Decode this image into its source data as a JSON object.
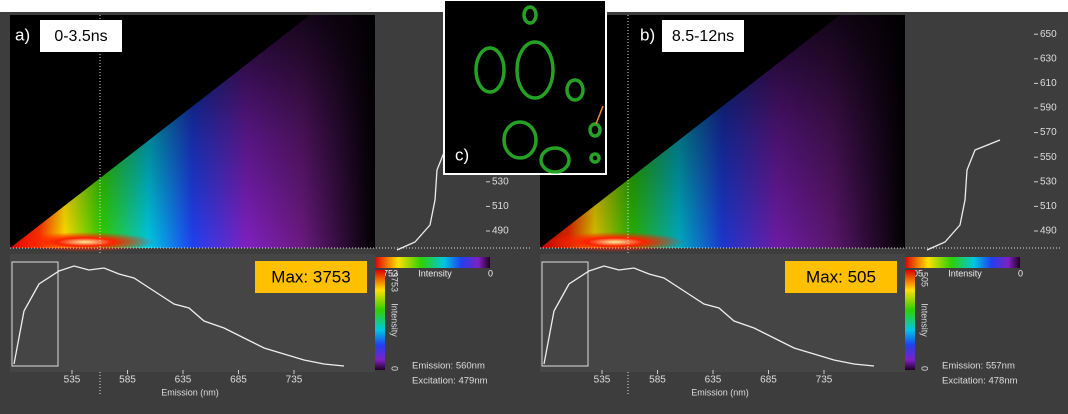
{
  "panels": [
    {
      "label": "a)",
      "window": "0-3.5ns",
      "max": "Max: 3753",
      "colorbar": {
        "max": "3753",
        "title": "Intensity",
        "min": "0"
      },
      "emission_ticks": [
        "535",
        "585",
        "635",
        "685",
        "735"
      ],
      "emission_axis": "Emission (nm)",
      "excitation_ticks": [
        "490",
        "510",
        "530"
      ],
      "readout": [
        "Emission: 560nm",
        "Excitation: 479nm"
      ]
    },
    {
      "label": "b)",
      "window": "8.5-12ns",
      "max": "Max: 505",
      "colorbar": {
        "max": "505",
        "title": "Intensity",
        "min": "0"
      },
      "emission_ticks": [
        "535",
        "585",
        "635",
        "685",
        "735"
      ],
      "emission_axis": "Emission (nm)",
      "excitation_ticks": [
        "490",
        "510",
        "530",
        "550",
        "570",
        "590",
        "610",
        "630",
        "650"
      ],
      "readout": [
        "Emission: 557nm",
        "Excitation: 478nm"
      ]
    }
  ],
  "inset": {
    "label": "c)"
  }
}
